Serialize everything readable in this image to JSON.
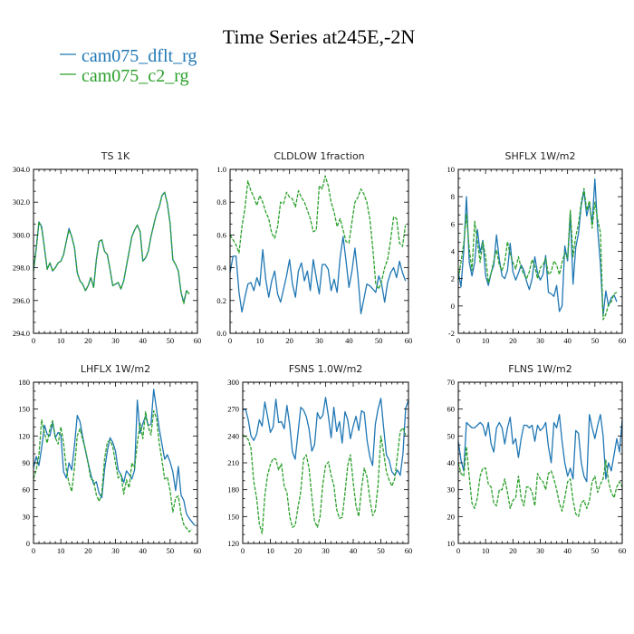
{
  "figure": {
    "title": "Time Series at245E,-2N",
    "legend": [
      {
        "label": "cam075_dflt_rg",
        "color": "#1f77b4",
        "dash": "solid"
      },
      {
        "label": "cam075_c2_rg",
        "color": "#2ca02c",
        "dash": "dashed"
      }
    ]
  },
  "chart_data": [
    {
      "type": "line",
      "title": "TS   1K",
      "xlim": [
        0,
        60
      ],
      "ylim": [
        294,
        304
      ],
      "xticks": [
        0,
        10,
        20,
        30,
        40,
        50,
        60
      ],
      "yticks": [
        294,
        296,
        298,
        300,
        302,
        304
      ],
      "ytick_labels": [
        "294.0",
        "296.0",
        "298.0",
        "300.0",
        "302.0",
        "304.0"
      ],
      "x_start": 0,
      "series": [
        {
          "name": "cam075_dflt_rg",
          "values": [
            297.8,
            299.2,
            300.8,
            300.5,
            299.2,
            297.9,
            298.3,
            297.8,
            298.0,
            298.3,
            298.4,
            298.8,
            299.6,
            300.4,
            299.9,
            299.2,
            297.7,
            297.2,
            297.0,
            296.6,
            296.9,
            297.4,
            296.8,
            298.5,
            299.6,
            299.7,
            299.0,
            298.8,
            297.9,
            296.9,
            297.0,
            297.1,
            296.7,
            297.2,
            298.1,
            299.0,
            299.9,
            300.3,
            300.6,
            300.2,
            298.4,
            298.6,
            299.0,
            299.9,
            300.6,
            301.3,
            301.7,
            302.4,
            302.6,
            301.9,
            300.7,
            298.5,
            298.2,
            297.8,
            296.5,
            295.9,
            296.6,
            296.4
          ]
        },
        {
          "name": "cam075_c2_rg",
          "values": [
            297.8,
            299.1,
            300.8,
            300.4,
            299.2,
            297.9,
            298.3,
            297.8,
            298.0,
            298.3,
            298.4,
            298.8,
            299.6,
            300.3,
            299.9,
            299.2,
            297.7,
            297.2,
            297.0,
            296.6,
            296.9,
            297.4,
            296.8,
            298.5,
            299.6,
            299.7,
            299.0,
            298.8,
            297.9,
            296.9,
            297.0,
            297.1,
            296.7,
            297.2,
            298.1,
            299.0,
            299.9,
            300.3,
            300.6,
            300.2,
            298.4,
            298.6,
            299.0,
            299.9,
            300.6,
            301.3,
            301.7,
            302.4,
            302.6,
            301.9,
            300.7,
            298.5,
            298.2,
            297.8,
            296.5,
            295.8,
            296.6,
            296.4
          ]
        }
      ]
    },
    {
      "type": "line",
      "title": "CLDLOW   1fraction",
      "xlim": [
        0,
        60
      ],
      "ylim": [
        0,
        1
      ],
      "xticks": [
        0,
        10,
        20,
        30,
        40,
        50,
        60
      ],
      "yticks": [
        0,
        0.2,
        0.4,
        0.6,
        0.8,
        1.0
      ],
      "ytick_labels": [
        "0.0",
        "0.2",
        "0.4",
        "0.6",
        "0.8",
        "1.0"
      ],
      "x_start": 0,
      "series": [
        {
          "name": "cam075_dflt_rg",
          "values": [
            0.37,
            0.47,
            0.47,
            0.25,
            0.13,
            0.22,
            0.3,
            0.31,
            0.26,
            0.34,
            0.29,
            0.51,
            0.33,
            0.22,
            0.32,
            0.38,
            0.24,
            0.19,
            0.27,
            0.35,
            0.45,
            0.3,
            0.22,
            0.38,
            0.43,
            0.32,
            0.38,
            0.26,
            0.45,
            0.34,
            0.24,
            0.42,
            0.42,
            0.39,
            0.26,
            0.33,
            0.25,
            0.46,
            0.59,
            0.44,
            0.28,
            0.38,
            0.52,
            0.35,
            0.12,
            0.21,
            0.3,
            0.29,
            0.27,
            0.25,
            0.35,
            0.3,
            0.19,
            0.31,
            0.37,
            0.4,
            0.34,
            0.44,
            0.37,
            0.32
          ]
        },
        {
          "name": "cam075_c2_rg",
          "values": [
            0.6,
            0.57,
            0.54,
            0.49,
            0.65,
            0.76,
            0.93,
            0.87,
            0.83,
            0.78,
            0.84,
            0.8,
            0.74,
            0.7,
            0.61,
            0.58,
            0.65,
            0.8,
            0.79,
            0.86,
            0.83,
            0.82,
            0.77,
            0.87,
            0.83,
            0.8,
            0.75,
            0.7,
            0.62,
            0.63,
            0.9,
            0.88,
            0.96,
            0.9,
            0.8,
            0.74,
            0.65,
            0.7,
            0.63,
            0.56,
            0.55,
            0.68,
            0.8,
            0.83,
            0.88,
            0.85,
            0.8,
            0.7,
            0.52,
            0.3,
            0.27,
            0.32,
            0.4,
            0.45,
            0.57,
            0.71,
            0.7,
            0.55,
            0.53,
            0.66
          ]
        }
      ]
    },
    {
      "type": "line",
      "title": "SHFLX   1W/m2",
      "xlim": [
        0,
        60
      ],
      "ylim": [
        -2,
        10
      ],
      "xticks": [
        0,
        10,
        20,
        30,
        40,
        50,
        60
      ],
      "yticks": [
        -2,
        0,
        2,
        4,
        6,
        8,
        10
      ],
      "ytick_labels": [
        "-2",
        "0",
        "2",
        "4",
        "6",
        "8",
        "10"
      ],
      "x_start": 0,
      "series": [
        {
          "name": "cam075_dflt_rg",
          "values": [
            2.5,
            1.4,
            4.0,
            8.0,
            3.2,
            2.2,
            3.2,
            5.6,
            3.9,
            4.8,
            2.2,
            1.5,
            2.4,
            3.0,
            5.2,
            3.4,
            2.2,
            2.0,
            2.6,
            4.6,
            2.5,
            1.9,
            2.4,
            3.0,
            2.6,
            1.8,
            1.2,
            2.0,
            3.6,
            2.4,
            1.9,
            2.3,
            3.7,
            1.0,
            0.9,
            0.7,
            1.5,
            -0.4,
            0.0,
            4.4,
            3.3,
            6.8,
            1.6,
            4.3,
            5.3,
            7.4,
            8.4,
            6.6,
            7.5,
            6.0,
            9.3,
            5.6,
            3.1,
            -0.7,
            1.1,
            0.0,
            0.6,
            0.8,
            0.3
          ]
        },
        {
          "name": "cam075_c2_rg",
          "values": [
            2.0,
            3.2,
            4.6,
            6.7,
            4.2,
            2.6,
            6.2,
            4.7,
            3.2,
            4.7,
            3.6,
            1.7,
            2.4,
            3.3,
            4.1,
            3.0,
            2.6,
            3.2,
            4.7,
            3.8,
            3.2,
            2.7,
            3.6,
            2.8,
            2.3,
            2.0,
            2.5,
            3.4,
            2.9,
            2.0,
            2.8,
            3.0,
            3.5,
            2.3,
            2.5,
            3.3,
            3.0,
            2.3,
            3.2,
            3.9,
            3.5,
            7.0,
            3.6,
            5.1,
            6.0,
            7.6,
            8.6,
            7.0,
            7.7,
            5.7,
            7.6,
            6.3,
            5.4,
            -1.0,
            -0.6,
            0.1,
            0.3,
            0.9,
            1.0
          ]
        }
      ]
    },
    {
      "type": "line",
      "title": "LHFLX   1W/m2",
      "xlim": [
        0,
        60
      ],
      "ylim": [
        0,
        180
      ],
      "xticks": [
        0,
        10,
        20,
        30,
        40,
        50,
        60
      ],
      "yticks": [
        0,
        30,
        60,
        90,
        120,
        150,
        180
      ],
      "ytick_labels": [
        "0",
        "30",
        "60",
        "90",
        "120",
        "150",
        "180"
      ],
      "x_start": 0,
      "series": [
        {
          "name": "cam075_dflt_rg",
          "values": [
            84,
            97,
            87,
            107,
            132,
            122,
            120,
            135,
            118,
            124,
            121,
            80,
            73,
            90,
            82,
            110,
            143,
            136,
            119,
            104,
            90,
            77,
            66,
            69,
            56,
            51,
            82,
            103,
            118,
            113,
            103,
            82,
            77,
            68,
            81,
            77,
            72,
            82,
            160,
            123,
            134,
            142,
            132,
            133,
            172,
            150,
            128,
            111,
            94,
            99,
            91,
            80,
            59,
            86,
            54,
            48,
            33,
            28,
            24,
            20
          ]
        },
        {
          "name": "cam075_c2_rg",
          "values": [
            72,
            82,
            99,
            138,
            123,
            112,
            128,
            137,
            118,
            111,
            130,
            112,
            83,
            67,
            58,
            85,
            120,
            128,
            116,
            105,
            89,
            72,
            70,
            54,
            47,
            56,
            94,
            113,
            115,
            108,
            90,
            73,
            77,
            55,
            71,
            62,
            90,
            84,
            112,
            134,
            117,
            147,
            130,
            121,
            148,
            140,
            112,
            93,
            72,
            74,
            59,
            35,
            51,
            53,
            33,
            21,
            17,
            13,
            16
          ]
        }
      ]
    },
    {
      "type": "line",
      "title": "FSNS   1.0W/m2",
      "xlim": [
        0,
        60
      ],
      "ylim": [
        120,
        300
      ],
      "xticks": [
        0,
        10,
        20,
        30,
        40,
        50,
        60
      ],
      "yticks": [
        120,
        150,
        180,
        210,
        240,
        270,
        300
      ],
      "ytick_labels": [
        "120",
        "150",
        "180",
        "210",
        "240",
        "270",
        "300"
      ],
      "x_start": 0,
      "series": [
        {
          "name": "cam075_dflt_rg",
          "values": [
            269,
            270,
            258,
            240,
            235,
            242,
            258,
            251,
            278,
            262,
            244,
            250,
            281,
            255,
            256,
            248,
            274,
            252,
            222,
            214,
            243,
            272,
            269,
            262,
            248,
            223,
            230,
            266,
            259,
            263,
            283,
            262,
            238,
            272,
            245,
            256,
            232,
            267,
            258,
            237,
            251,
            262,
            246,
            268,
            266,
            235,
            217,
            207,
            253,
            270,
            282,
            250,
            219,
            213,
            200,
            196,
            202,
            196,
            220,
            271,
            280
          ]
        },
        {
          "name": "cam075_c2_rg",
          "values": [
            241,
            239,
            236,
            226,
            189,
            171,
            142,
            131,
            173,
            196,
            208,
            215,
            214,
            202,
            209,
            184,
            177,
            150,
            138,
            140,
            160,
            178,
            214,
            219,
            204,
            172,
            145,
            138,
            150,
            186,
            207,
            211,
            196,
            185,
            158,
            148,
            149,
            176,
            207,
            219,
            188,
            162,
            150,
            181,
            204,
            194,
            170,
            151,
            157,
            185,
            240,
            222,
            200,
            191,
            184,
            192,
            218,
            245,
            249,
            241
          ]
        }
      ]
    },
    {
      "type": "line",
      "title": "FLNS   1W/m2",
      "xlim": [
        0,
        60
      ],
      "ylim": [
        10,
        70
      ],
      "xticks": [
        0,
        10,
        20,
        30,
        40,
        50,
        60
      ],
      "yticks": [
        10,
        20,
        30,
        40,
        50,
        60,
        70
      ],
      "ytick_labels": [
        "10",
        "20",
        "30",
        "40",
        "50",
        "60",
        "70"
      ],
      "x_start": 0,
      "series": [
        {
          "name": "cam075_dflt_rg",
          "values": [
            48,
            41,
            37,
            55,
            54,
            53,
            53,
            54,
            55,
            54,
            50,
            55,
            47,
            44,
            53,
            55,
            53,
            47,
            53,
            57,
            47,
            49,
            42,
            49,
            54,
            54,
            53,
            54,
            48,
            54,
            52,
            53,
            55,
            46,
            40,
            55,
            53,
            58,
            48,
            40,
            35,
            38,
            34,
            52,
            51,
            40,
            35,
            33,
            58,
            53,
            49,
            54,
            58,
            50,
            34,
            40,
            37,
            43,
            49,
            44,
            56
          ]
        },
        {
          "name": "cam075_c2_rg",
          "values": [
            40,
            36,
            35,
            46,
            35,
            25,
            23,
            27,
            35,
            38,
            38,
            32,
            31,
            25,
            24,
            30,
            30,
            34,
            29,
            23,
            26,
            27,
            35,
            27,
            24,
            31,
            31,
            29,
            24,
            36,
            34,
            33,
            30,
            36,
            37,
            34,
            30,
            25,
            22,
            27,
            33,
            34,
            26,
            21,
            20,
            25,
            26,
            23,
            26,
            33,
            35,
            29,
            32,
            34,
            41,
            33,
            29,
            27,
            31,
            33,
            31
          ]
        }
      ]
    }
  ]
}
